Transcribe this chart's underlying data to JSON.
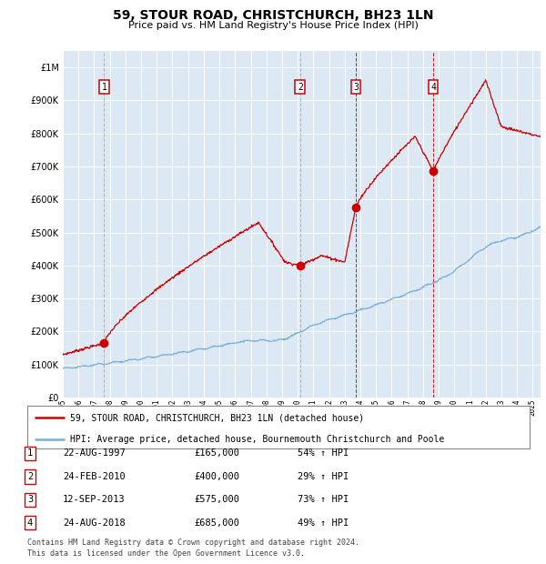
{
  "title": "59, STOUR ROAD, CHRISTCHURCH, BH23 1LN",
  "subtitle": "Price paid vs. HM Land Registry's House Price Index (HPI)",
  "background_color": "#dce9f5",
  "red_line_color": "#cc0000",
  "blue_line_color": "#7bafd4",
  "grid_color": "#ffffff",
  "sale_dates": [
    1997.64,
    2010.15,
    2013.7,
    2018.65
  ],
  "sale_prices": [
    165000,
    400000,
    575000,
    685000
  ],
  "sale_labels": [
    "1",
    "2",
    "3",
    "4"
  ],
  "legend_red": "59, STOUR ROAD, CHRISTCHURCH, BH23 1LN (detached house)",
  "legend_blue": "HPI: Average price, detached house, Bournemouth Christchurch and Poole",
  "table_rows": [
    [
      "1",
      "22-AUG-1997",
      "£165,000",
      "54% ↑ HPI"
    ],
    [
      "2",
      "24-FEB-2010",
      "£400,000",
      "29% ↑ HPI"
    ],
    [
      "3",
      "12-SEP-2013",
      "£575,000",
      "73% ↑ HPI"
    ],
    [
      "4",
      "24-AUG-2018",
      "£685,000",
      "49% ↑ HPI"
    ]
  ],
  "footnote1": "Contains HM Land Registry data © Crown copyright and database right 2024.",
  "footnote2": "This data is licensed under the Open Government Licence v3.0.",
  "ylim": [
    0,
    1050000
  ],
  "xlim_start": 1995.0,
  "xlim_end": 2025.5
}
